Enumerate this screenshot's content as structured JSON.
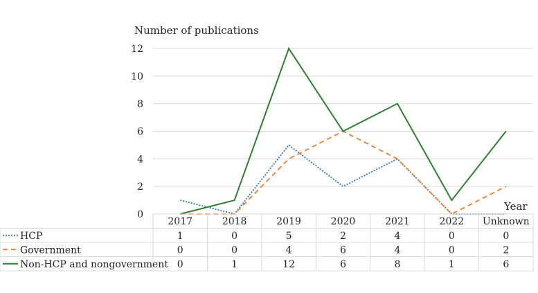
{
  "chart_data": {
    "type": "line",
    "title": "",
    "ylabel": "Number of publications",
    "xlabel": "Year",
    "categories": [
      "2017",
      "2018",
      "2019",
      "2020",
      "2021",
      "2022",
      "Unknown"
    ],
    "ylim": [
      0,
      12
    ],
    "yticks": [
      0,
      2,
      4,
      6,
      8,
      10,
      12
    ],
    "grid": true,
    "data_table": true,
    "series": [
      {
        "name": "HCP",
        "values": [
          1,
          0,
          5,
          2,
          4,
          0,
          0
        ],
        "color": "#2E75B6",
        "dash": "dotted"
      },
      {
        "name": "Government",
        "values": [
          0,
          0,
          4,
          6,
          4,
          0,
          2
        ],
        "color": "#ED7D31",
        "dash": "dashed"
      },
      {
        "name": "Non-HCP and nongovernment",
        "values": [
          0,
          1,
          12,
          6,
          8,
          1,
          6
        ],
        "color": "#2E7D32",
        "dash": "solid"
      }
    ]
  }
}
